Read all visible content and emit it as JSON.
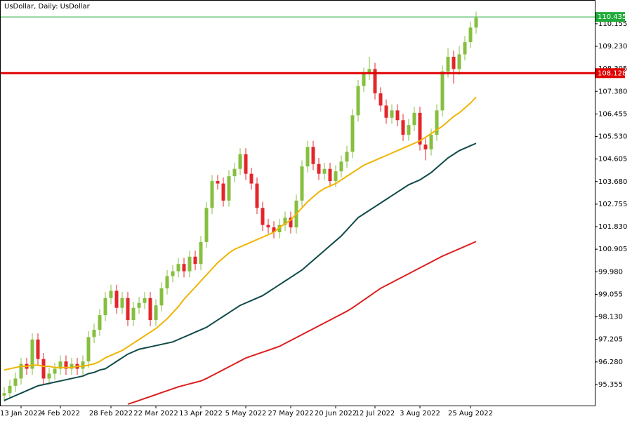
{
  "chart_data": {
    "type": "candlestick",
    "title": "UsDollar, Daily:  UsDollar",
    "categories": [
      null,
      null,
      null,
      "13 Jan 2022",
      null,
      null,
      null,
      null,
      null,
      null,
      "4 Feb 2022",
      null,
      null,
      null,
      null,
      null,
      null,
      null,
      null,
      "28 Feb 2022",
      null,
      null,
      null,
      null,
      null,
      null,
      null,
      "22 Mar 2022",
      null,
      null,
      null,
      null,
      null,
      null,
      null,
      "13 Apr 2022",
      null,
      null,
      null,
      null,
      null,
      null,
      null,
      "5 May 2022",
      null,
      null,
      null,
      null,
      null,
      null,
      null,
      "27 May 2022",
      null,
      null,
      null,
      null,
      null,
      null,
      null,
      "20 Jun 2022",
      null,
      null,
      null,
      null,
      null,
      null,
      "12 Jul 2022",
      null,
      null,
      null,
      null,
      null,
      null,
      null,
      "3 Aug 2022",
      null,
      null,
      null,
      null,
      null,
      null,
      null,
      null,
      "25 Aug 2022",
      null
    ],
    "open": [
      94.9,
      95.0,
      95.3,
      95.6,
      96.2,
      96.0,
      97.2,
      96.4,
      95.6,
      95.8,
      96.0,
      96.3,
      96.0,
      96.2,
      96.0,
      96.3,
      97.3,
      97.6,
      98.2,
      98.9,
      99.2,
      98.5,
      98.9,
      98.0,
      98.5,
      98.7,
      98.9,
      98.0,
      98.6,
      99.3,
      99.8,
      100.0,
      100.3,
      100.0,
      100.6,
      100.3,
      101.2,
      102.6,
      103.7,
      103.6,
      102.9,
      103.9,
      104.2,
      104.8,
      104.0,
      103.6,
      102.6,
      101.9,
      101.8,
      101.6,
      101.9,
      102.2,
      101.8,
      102.9,
      104.3,
      105.1,
      104.4,
      104.0,
      104.2,
      103.7,
      104.1,
      104.5,
      104.9,
      106.4,
      107.6,
      108.1,
      108.3,
      107.3,
      106.8,
      106.3,
      106.6,
      106.2,
      105.6,
      106.0,
      106.5,
      105.2,
      105.0,
      105.6,
      106.6,
      108.2,
      108.8,
      108.3,
      108.9,
      109.4,
      110.0
    ],
    "high": [
      95.25,
      95.55,
      95.85,
      96.45,
      96.45,
      97.45,
      97.45,
      96.65,
      96.05,
      96.25,
      96.55,
      96.55,
      96.45,
      96.45,
      96.55,
      97.55,
      97.85,
      98.45,
      99.15,
      99.45,
      99.45,
      99.15,
      99.15,
      98.75,
      98.95,
      99.15,
      99.15,
      98.85,
      99.55,
      100.05,
      100.25,
      100.55,
      100.55,
      100.85,
      100.85,
      101.45,
      102.85,
      103.95,
      103.95,
      103.85,
      104.15,
      104.45,
      105.05,
      105.05,
      104.25,
      103.85,
      102.85,
      102.15,
      102.05,
      102.15,
      102.45,
      102.45,
      103.15,
      104.55,
      105.35,
      105.35,
      104.65,
      104.45,
      104.45,
      104.35,
      104.75,
      105.15,
      106.65,
      107.85,
      108.35,
      108.8,
      108.55,
      107.55,
      107.05,
      106.85,
      106.85,
      106.45,
      106.25,
      106.75,
      106.75,
      105.45,
      105.85,
      106.85,
      108.45,
      109.15,
      109.05,
      109.25,
      109.65,
      110.25,
      110.65
    ],
    "low": [
      94.65,
      94.75,
      95.05,
      95.35,
      95.75,
      95.75,
      96.15,
      95.35,
      95.35,
      95.55,
      95.75,
      95.75,
      95.75,
      95.75,
      95.75,
      96.05,
      97.05,
      97.35,
      97.95,
      98.65,
      98.25,
      98.25,
      97.75,
      97.75,
      98.25,
      98.45,
      97.75,
      97.75,
      98.35,
      99.05,
      99.55,
      99.75,
      99.75,
      99.75,
      100.05,
      100.05,
      100.95,
      102.35,
      103.35,
      102.65,
      102.65,
      103.65,
      103.95,
      103.75,
      103.35,
      102.35,
      101.65,
      101.55,
      101.35,
      101.35,
      101.65,
      101.55,
      101.55,
      102.65,
      104.05,
      104.15,
      103.75,
      103.75,
      103.45,
      103.45,
      103.85,
      104.25,
      104.65,
      106.15,
      107.35,
      107.85,
      107.05,
      106.55,
      106.05,
      106.05,
      105.95,
      105.35,
      105.35,
      105.75,
      104.95,
      104.55,
      104.75,
      105.35,
      106.35,
      107.95,
      107.7,
      108.05,
      108.65,
      109.15,
      109.75
    ],
    "close": [
      95.0,
      95.3,
      95.6,
      96.2,
      96.0,
      97.2,
      96.4,
      95.6,
      95.8,
      96.0,
      96.3,
      96.0,
      96.2,
      96.0,
      96.3,
      97.3,
      97.6,
      98.2,
      98.9,
      99.2,
      98.5,
      98.9,
      98.0,
      98.5,
      98.7,
      98.9,
      98.0,
      98.6,
      99.3,
      99.8,
      100.0,
      100.3,
      100.0,
      100.6,
      100.3,
      101.2,
      102.6,
      103.7,
      103.6,
      102.9,
      103.9,
      104.2,
      104.8,
      104.0,
      103.6,
      102.6,
      101.9,
      101.8,
      101.6,
      101.9,
      102.2,
      101.8,
      102.9,
      104.3,
      105.1,
      104.4,
      104.0,
      104.2,
      103.7,
      104.1,
      104.5,
      104.9,
      106.4,
      107.6,
      108.1,
      108.3,
      107.3,
      106.8,
      106.3,
      106.6,
      106.2,
      105.6,
      106.0,
      106.5,
      105.2,
      105.0,
      105.6,
      106.6,
      108.2,
      108.8,
      108.3,
      108.9,
      109.4,
      110.0,
      110.4
    ],
    "up_color": "#86bf3f",
    "down_color": "#e3262b",
    "series": [
      {
        "color": "#f0b400",
        "values": [
          95.95,
          96.0,
          96.05,
          96.1,
          96.1,
          96.15,
          96.15,
          96.1,
          96.1,
          96.05,
          96.05,
          96.05,
          96.05,
          96.1,
          96.1,
          96.15,
          96.2,
          96.3,
          96.45,
          96.55,
          96.65,
          96.75,
          96.9,
          97.05,
          97.2,
          97.35,
          97.5,
          97.65,
          97.85,
          98.05,
          98.3,
          98.55,
          98.85,
          99.1,
          99.35,
          99.6,
          99.85,
          100.1,
          100.35,
          100.55,
          100.75,
          100.9,
          101.0,
          101.1,
          101.2,
          101.3,
          101.4,
          101.5,
          101.6,
          101.8,
          101.95,
          102.1,
          102.35,
          102.6,
          102.85,
          103.05,
          103.25,
          103.4,
          103.5,
          103.6,
          103.75,
          103.9,
          104.05,
          104.2,
          104.35,
          104.45,
          104.55,
          104.65,
          104.75,
          104.85,
          104.95,
          105.05,
          105.15,
          105.25,
          105.35,
          105.5,
          105.65,
          105.8,
          105.95,
          106.15,
          106.35,
          106.5,
          106.7,
          106.9,
          107.15
        ]
      },
      {
        "color": "#0f4a48",
        "values": [
          94.7,
          94.8,
          94.9,
          95.0,
          95.1,
          95.2,
          95.3,
          95.35,
          95.4,
          95.45,
          95.5,
          95.55,
          95.6,
          95.65,
          95.7,
          95.8,
          95.85,
          95.95,
          96.0,
          96.15,
          96.3,
          96.45,
          96.6,
          96.7,
          96.8,
          96.85,
          96.9,
          96.95,
          97.0,
          97.05,
          97.1,
          97.2,
          97.3,
          97.4,
          97.5,
          97.6,
          97.7,
          97.85,
          98.0,
          98.15,
          98.3,
          98.45,
          98.6,
          98.7,
          98.8,
          98.9,
          99.0,
          99.15,
          99.3,
          99.45,
          99.6,
          99.75,
          99.9,
          100.05,
          100.25,
          100.45,
          100.65,
          100.85,
          101.05,
          101.25,
          101.45,
          101.7,
          101.95,
          102.2,
          102.35,
          102.5,
          102.65,
          102.8,
          102.95,
          103.1,
          103.25,
          103.4,
          103.55,
          103.65,
          103.75,
          103.9,
          104.05,
          104.25,
          104.45,
          104.65,
          104.8,
          104.95,
          105.05,
          105.15,
          105.25
        ]
      },
      {
        "color": "#dc1f1f",
        "values": [
          null,
          null,
          null,
          null,
          null,
          null,
          null,
          null,
          null,
          null,
          null,
          null,
          null,
          null,
          null,
          null,
          null,
          null,
          null,
          null,
          null,
          null,
          94.55,
          94.62,
          94.7,
          94.78,
          94.86,
          94.94,
          95.02,
          95.1,
          95.18,
          95.26,
          95.32,
          95.38,
          95.44,
          95.5,
          95.6,
          95.72,
          95.84,
          95.96,
          96.08,
          96.2,
          96.32,
          96.44,
          96.52,
          96.6,
          96.68,
          96.76,
          96.84,
          96.92,
          97.04,
          97.16,
          97.28,
          97.4,
          97.52,
          97.64,
          97.76,
          97.88,
          98.0,
          98.12,
          98.24,
          98.36,
          98.5,
          98.66,
          98.82,
          98.98,
          99.14,
          99.3,
          99.42,
          99.54,
          99.66,
          99.78,
          99.9,
          100.02,
          100.14,
          100.26,
          100.38,
          100.5,
          100.62,
          100.72,
          100.82,
          100.92,
          101.02,
          101.12,
          101.22
        ]
      }
    ],
    "levels": [
      {
        "value": 110.435,
        "color": "#1faa3a"
      },
      {
        "value": 108.128,
        "color": "#e00000"
      }
    ],
    "ylim": [
      94.49,
      111.13
    ],
    "yticks": [
      110.155,
      {
        "value": 109.23,
        "label": "109.230"
      },
      108.305,
      {
        "value": 107.38,
        "label": "107.380"
      },
      106.455,
      {
        "value": 105.53,
        "label": "105.530"
      },
      104.605,
      {
        "value": 103.68,
        "label": "103.680"
      },
      102.755,
      {
        "value": 101.83,
        "label": "101.830"
      },
      100.905,
      {
        "value": 99.98,
        "label": "99.980"
      },
      99.055,
      {
        "value": 98.13,
        "label": "98.130"
      },
      97.205,
      {
        "value": 96.28,
        "label": "96.280"
      },
      95.355
    ]
  }
}
